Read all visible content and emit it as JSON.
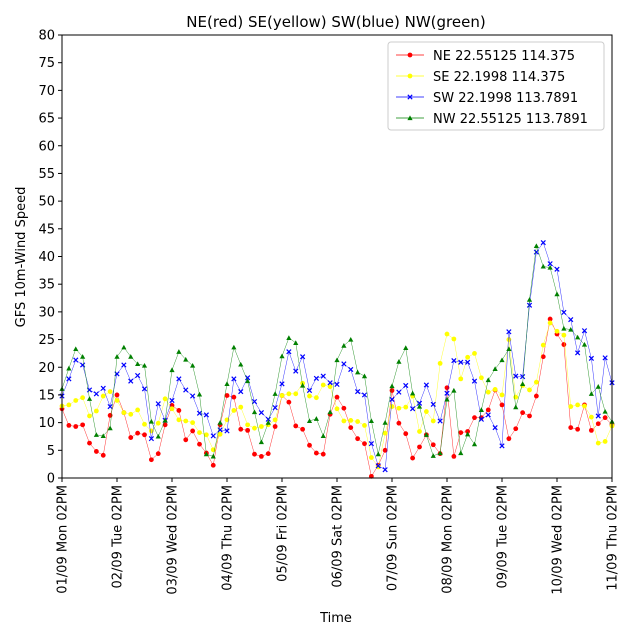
{
  "chart_data": {
    "type": "line",
    "title": "NE(red) SE(yellow) SW(blue) NW(green)",
    "xlabel": "Time",
    "ylabel": "GFS 10m-Wind Speed",
    "ylim": [
      0,
      80
    ],
    "yticks": [
      0,
      5,
      10,
      15,
      20,
      25,
      30,
      35,
      40,
      45,
      50,
      55,
      60,
      65,
      70,
      75,
      80
    ],
    "xlim": [
      0,
      240
    ],
    "x_unit": "hours, 3-hourly, from 01/09 Mon 02PM",
    "xticks": [
      {
        "x": 0,
        "label": "01/09 Mon 02PM"
      },
      {
        "x": 24,
        "label": "02/09 Tue 02PM"
      },
      {
        "x": 48,
        "label": "03/09 Wed 02PM"
      },
      {
        "x": 72,
        "label": "04/09 Thu 02PM"
      },
      {
        "x": 96,
        "label": "05/09 Fri 02PM"
      },
      {
        "x": 120,
        "label": "06/09 Sat 02PM"
      },
      {
        "x": 144,
        "label": "07/09 Sun 02PM"
      },
      {
        "x": 168,
        "label": "08/09 Mon 02PM"
      },
      {
        "x": 192,
        "label": "09/09 Tue 02PM"
      },
      {
        "x": 216,
        "label": "10/09 Wed 02PM"
      },
      {
        "x": 240,
        "label": "11/09 Thu 02PM"
      }
    ],
    "grid": false,
    "legend_position": "top-right",
    "series": [
      {
        "name": "NE 22.55125 114.375",
        "color": "#ff0000",
        "marker": "circle",
        "values": [
          12.5,
          9.5,
          9.3,
          9.6,
          6.3,
          4.8,
          4.1,
          11.3,
          15.0,
          11.8,
          7.3,
          8.1,
          7.8,
          3.3,
          4.4,
          9.6,
          13.1,
          12.2,
          6.9,
          8.5,
          6.1,
          4.5,
          2.3,
          9.6,
          14.9,
          14.6,
          8.8,
          8.6,
          4.3,
          3.9,
          4.4,
          9.3,
          14.9,
          13.7,
          9.4,
          8.8,
          5.9,
          4.5,
          4.3,
          11.5,
          14.6,
          12.6,
          9.1,
          7.1,
          6.2,
          0.3,
          2.3,
          5.0,
          15.8,
          9.9,
          8.0,
          3.6,
          5.6,
          7.8,
          6.0,
          4.4,
          16.3,
          3.9,
          8.2,
          8.4,
          10.9,
          10.9,
          12.3,
          15.9,
          13.2,
          7.1,
          8.9,
          11.8,
          11.2,
          14.8,
          21.9,
          28.7,
          26.0,
          24.1,
          9.1,
          8.8,
          13.2,
          8.6,
          9.8,
          10.9,
          9.6
        ]
      },
      {
        "name": "SE 22.1998 114.375",
        "color": "#ffff00",
        "marker": "circle",
        "values": [
          13.0,
          13.2,
          14.0,
          14.5,
          11.2,
          12.1,
          14.8,
          15.6,
          14.0,
          11.8,
          11.5,
          12.3,
          9.7,
          8.5,
          9.9,
          14.3,
          12.5,
          10.5,
          10.3,
          10.0,
          8.2,
          7.8,
          5.1,
          7.9,
          10.5,
          12.2,
          12.8,
          9.6,
          9.0,
          9.3,
          9.6,
          10.5,
          14.9,
          15.2,
          15.2,
          17.1,
          14.8,
          14.5,
          16.8,
          16.5,
          12.5,
          10.3,
          10.4,
          10.2,
          9.5,
          3.7,
          2.0,
          8.1,
          12.9,
          12.6,
          12.8,
          14.8,
          8.4,
          12.0,
          10.3,
          20.7,
          26.0,
          25.1,
          17.9,
          21.8,
          22.5,
          18.1,
          15.5,
          16.0,
          15.0,
          25.0,
          14.6,
          16.7,
          15.9,
          17.3,
          24.0,
          28.0,
          26.5,
          25.8,
          12.9,
          13.2,
          13.0,
          11.0,
          6.3,
          6.6,
          9.4
        ]
      },
      {
        "name": "SW 22.1998 113.7891",
        "color": "#0000ff",
        "marker": "x",
        "values": [
          14.8,
          17.9,
          21.3,
          20.4,
          15.9,
          15.2,
          16.2,
          12.9,
          18.8,
          20.4,
          17.5,
          18.5,
          16.1,
          7.1,
          13.4,
          10.4,
          14.0,
          17.9,
          15.9,
          14.8,
          11.7,
          11.4,
          7.6,
          8.7,
          8.5,
          17.9,
          15.6,
          18.1,
          13.8,
          11.8,
          10.6,
          12.7,
          17.0,
          22.8,
          19.3,
          21.9,
          15.8,
          18.0,
          18.4,
          17.2,
          16.9,
          20.6,
          19.6,
          15.6,
          15.0,
          6.2,
          2.2,
          1.5,
          14.2,
          15.5,
          16.7,
          12.5,
          13.5,
          16.8,
          13.3,
          10.3,
          15.3,
          21.2,
          20.9,
          20.9,
          17.5,
          10.6,
          11.4,
          9.1,
          5.8,
          26.4,
          18.4,
          18.3,
          31.2,
          40.8,
          42.5,
          38.7,
          37.7,
          29.9,
          28.6,
          22.6,
          26.6,
          21.6,
          11.2,
          21.7,
          17.2
        ]
      },
      {
        "name": "NW 22.55125 113.7891",
        "color": "#008000",
        "marker": "triangle",
        "values": [
          16.1,
          19.8,
          23.3,
          21.9,
          14.3,
          7.8,
          7.6,
          9.0,
          21.9,
          23.6,
          21.9,
          20.6,
          20.3,
          10.2,
          7.5,
          10.4,
          19.5,
          22.8,
          21.4,
          20.3,
          15.1,
          4.3,
          3.9,
          10.0,
          17.0,
          23.6,
          20.5,
          17.5,
          11.9,
          6.5,
          10.0,
          15.2,
          22.0,
          25.3,
          24.4,
          16.7,
          10.3,
          10.7,
          7.6,
          11.9,
          21.3,
          23.9,
          25.0,
          19.1,
          18.4,
          10.3,
          4.3,
          10.0,
          16.6,
          21.0,
          23.5,
          15.3,
          12.9,
          7.8,
          4.0,
          4.5,
          14.2,
          15.8,
          4.5,
          7.9,
          6.1,
          12.3,
          17.7,
          19.7,
          21.3,
          23.3,
          12.8,
          17.0,
          32.2,
          41.9,
          38.2,
          38.0,
          33.2,
          27.0,
          26.8,
          25.4,
          24.1,
          15.2,
          16.5,
          12.0,
          10.2
        ]
      }
    ]
  }
}
